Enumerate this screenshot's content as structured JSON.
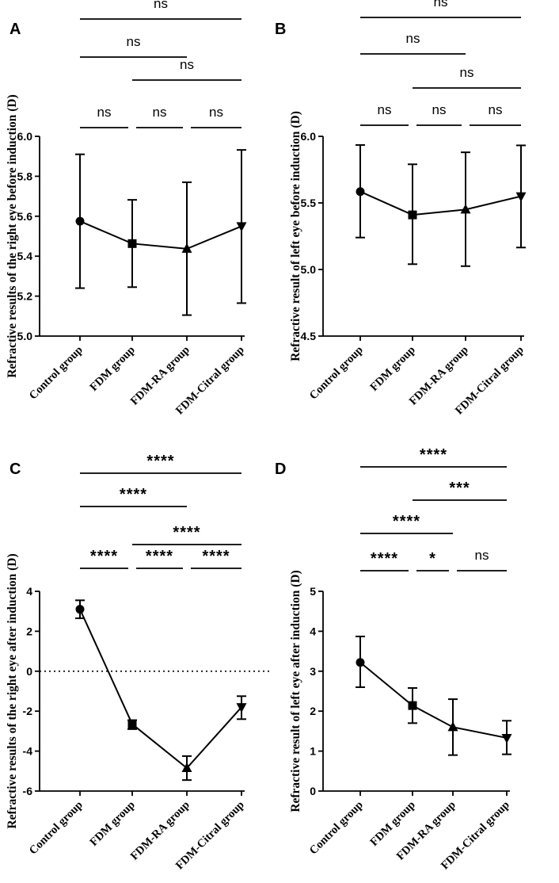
{
  "chart_data": [
    {
      "panel": "A",
      "type": "line",
      "categories": [
        "Control group",
        "FDM group",
        "FDM-RA group",
        "FDM-Citral group"
      ],
      "values": [
        5.575,
        5.463,
        5.437,
        5.55
      ],
      "errors_low": [
        5.24,
        5.245,
        5.105,
        5.165
      ],
      "errors_high": [
        5.91,
        5.682,
        5.77,
        5.932
      ],
      "markers": [
        "circle",
        "square",
        "triangle-up",
        "triangle-down"
      ],
      "ylabel": "Refractive results of the right eye before induction (D)",
      "ylim": [
        5.0,
        6.0
      ],
      "yticks": [
        "5.0",
        "5.2",
        "5.4",
        "5.6",
        "5.8",
        "6.0"
      ],
      "zero_line": false,
      "significance": [
        {
          "from": 0,
          "to": 1,
          "label": "ns"
        },
        {
          "from": 1,
          "to": 2,
          "label": "ns"
        },
        {
          "from": 2,
          "to": 3,
          "label": "ns"
        },
        {
          "from": 1,
          "to": 3,
          "label": "ns"
        },
        {
          "from": 0,
          "to": 2,
          "label": "ns"
        },
        {
          "from": 0,
          "to": 3,
          "label": "ns"
        }
      ]
    },
    {
      "panel": "B",
      "type": "line",
      "categories": [
        "Control group",
        "FDM group",
        "FDM-RA group",
        "FDM-Citral group"
      ],
      "values": [
        5.585,
        5.41,
        5.45,
        5.55
      ],
      "errors_low": [
        5.24,
        5.04,
        5.025,
        5.165
      ],
      "errors_high": [
        5.935,
        5.79,
        5.88,
        5.932
      ],
      "markers": [
        "circle",
        "square",
        "triangle-up",
        "triangle-down"
      ],
      "ylabel": "Refractive result of left eye before induction (D)",
      "ylim": [
        4.5,
        6.0
      ],
      "yticks": [
        "4.5",
        "5.0",
        "5.5",
        "6.0"
      ],
      "zero_line": false,
      "significance": [
        {
          "from": 0,
          "to": 1,
          "label": "ns"
        },
        {
          "from": 1,
          "to": 2,
          "label": "ns"
        },
        {
          "from": 2,
          "to": 3,
          "label": "ns"
        },
        {
          "from": 1,
          "to": 3,
          "label": "ns"
        },
        {
          "from": 0,
          "to": 2,
          "label": "ns"
        },
        {
          "from": 0,
          "to": 3,
          "label": "ns"
        }
      ]
    },
    {
      "panel": "C",
      "type": "line",
      "categories": [
        "Control group",
        "FDM group",
        "FDM-RA group",
        "FDM-Citral group"
      ],
      "values": [
        3.1,
        -2.65,
        -4.85,
        -1.8
      ],
      "errors_low": [
        2.65,
        -2.9,
        -5.45,
        -2.4
      ],
      "errors_high": [
        3.55,
        -2.45,
        -4.25,
        -1.25
      ],
      "markers": [
        "circle",
        "square",
        "triangle-up",
        "triangle-down"
      ],
      "ylabel": "Refractive results of the right eye after induction (D)",
      "ylim": [
        -6,
        4
      ],
      "yticks": [
        "-6",
        "-4",
        "-2",
        "0",
        "2",
        "4"
      ],
      "zero_line": true,
      "significance": [
        {
          "from": 0,
          "to": 1,
          "label": "****"
        },
        {
          "from": 1,
          "to": 2,
          "label": "****"
        },
        {
          "from": 2,
          "to": 3,
          "label": "****"
        },
        {
          "from": 1,
          "to": 3,
          "label": "****"
        },
        {
          "from": 0,
          "to": 2,
          "label": "****"
        },
        {
          "from": 0,
          "to": 3,
          "label": "****"
        }
      ]
    },
    {
      "panel": "D",
      "type": "line",
      "categories": [
        "Control group",
        "FDM group",
        "FDM-RA group",
        "FDM-Citral group"
      ],
      "values": [
        3.22,
        2.14,
        1.6,
        1.33
      ],
      "errors_low": [
        2.6,
        1.7,
        0.9,
        0.92
      ],
      "errors_high": [
        3.87,
        2.58,
        2.3,
        1.76
      ],
      "markers": [
        "circle",
        "square",
        "triangle-up",
        "triangle-down"
      ],
      "ylabel": "Refractive result of left eye after induction (D)",
      "ylim": [
        0,
        5
      ],
      "yticks": [
        "0",
        "1",
        "2",
        "3",
        "4",
        "5"
      ],
      "zero_line": false,
      "significance": [
        {
          "from": 0,
          "to": 1,
          "label": "****"
        },
        {
          "from": 1,
          "to": 2,
          "label": "*"
        },
        {
          "from": 2,
          "to": 3,
          "label": "ns"
        },
        {
          "from": 0,
          "to": 2,
          "label": "****"
        },
        {
          "from": 1,
          "to": 3,
          "label": "***"
        },
        {
          "from": 0,
          "to": 3,
          "label": "****"
        }
      ]
    }
  ]
}
